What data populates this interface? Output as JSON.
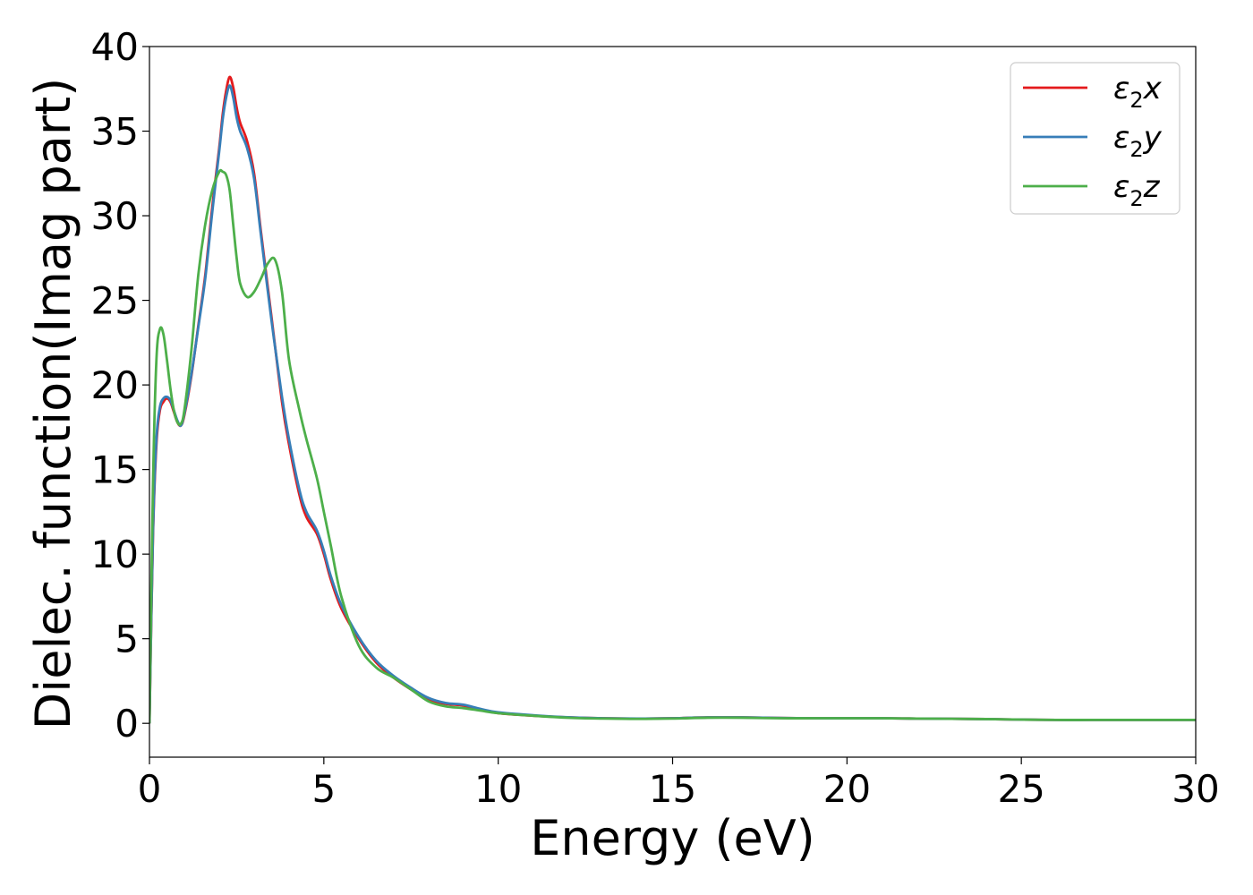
{
  "chart_data": {
    "type": "line",
    "xlabel": "Energy (eV)",
    "ylabel": "Dielec. function(Imag part)",
    "xlim": [
      0,
      30
    ],
    "ylim": [
      -2,
      40
    ],
    "xticks": [
      0,
      5,
      10,
      15,
      20,
      25,
      30
    ],
    "yticks": [
      0,
      5,
      10,
      15,
      20,
      25,
      30,
      35,
      40
    ],
    "grid": false,
    "legend_position": "top-right",
    "series": [
      {
        "name": "ε₂x",
        "legend": {
          "base": "ε",
          "sub": "2",
          "tail": "x"
        },
        "color": "#e41a1c",
        "x": [
          0,
          0.1,
          0.2,
          0.3,
          0.4,
          0.5,
          0.6,
          0.7,
          0.8,
          0.9,
          1.0,
          1.2,
          1.4,
          1.6,
          1.8,
          2.0,
          2.1,
          2.2,
          2.3,
          2.4,
          2.5,
          2.6,
          2.8,
          3.0,
          3.2,
          3.5,
          3.8,
          4.0,
          4.3,
          4.5,
          4.8,
          5.0,
          5.2,
          5.5,
          6.0,
          6.5,
          7.0,
          7.5,
          8.0,
          8.5,
          9.0,
          9.5,
          10,
          11,
          12,
          13,
          14,
          15,
          16,
          17,
          18,
          19,
          20,
          21,
          22,
          23,
          24,
          25,
          26,
          27,
          28,
          29,
          30
        ],
        "values": [
          0,
          11,
          16.5,
          18.5,
          19.0,
          19.2,
          19.0,
          18.4,
          17.8,
          17.6,
          18.2,
          20.5,
          23.5,
          26.5,
          30.5,
          34.0,
          36.0,
          37.4,
          38.2,
          37.6,
          36.4,
          35.5,
          34.4,
          32.5,
          29.0,
          24.0,
          19.0,
          16.5,
          13.5,
          12.2,
          11.2,
          10.0,
          8.5,
          6.8,
          5.0,
          3.6,
          2.7,
          2.0,
          1.4,
          1.15,
          1.05,
          0.8,
          0.6,
          0.45,
          0.35,
          0.3,
          0.28,
          0.3,
          0.35,
          0.35,
          0.32,
          0.3,
          0.3,
          0.3,
          0.28,
          0.27,
          0.25,
          0.22,
          0.2,
          0.2,
          0.2,
          0.2,
          0.2
        ]
      },
      {
        "name": "ε₂y",
        "legend": {
          "base": "ε",
          "sub": "2",
          "tail": "y"
        },
        "color": "#377eb8",
        "x": [
          0,
          0.1,
          0.2,
          0.3,
          0.4,
          0.5,
          0.6,
          0.7,
          0.8,
          0.9,
          1.0,
          1.2,
          1.4,
          1.6,
          1.8,
          2.0,
          2.1,
          2.2,
          2.3,
          2.4,
          2.5,
          2.6,
          2.8,
          3.0,
          3.2,
          3.5,
          3.8,
          4.0,
          4.3,
          4.5,
          4.8,
          5.0,
          5.2,
          5.5,
          6.0,
          6.5,
          7.0,
          7.5,
          8.0,
          8.5,
          9.0,
          9.5,
          10,
          11,
          12,
          13,
          14,
          15,
          16,
          17,
          18,
          19,
          20,
          21,
          22,
          23,
          24,
          25,
          26,
          27,
          28,
          29,
          30
        ],
        "values": [
          0,
          11.2,
          16.8,
          18.7,
          19.2,
          19.3,
          19.1,
          18.5,
          17.9,
          17.6,
          18.3,
          20.6,
          23.4,
          26.3,
          30.2,
          33.8,
          35.7,
          37.0,
          37.7,
          37.0,
          35.8,
          35.0,
          34.0,
          32.2,
          28.8,
          23.8,
          19.3,
          16.8,
          13.8,
          12.5,
          11.4,
          10.2,
          8.7,
          7.0,
          5.1,
          3.7,
          2.8,
          2.1,
          1.5,
          1.2,
          1.1,
          0.85,
          0.65,
          0.48,
          0.36,
          0.3,
          0.28,
          0.3,
          0.35,
          0.35,
          0.32,
          0.3,
          0.3,
          0.3,
          0.28,
          0.27,
          0.25,
          0.22,
          0.2,
          0.2,
          0.2,
          0.2,
          0.2
        ]
      },
      {
        "name": "ε₂z",
        "legend": {
          "base": "ε",
          "sub": "2",
          "tail": "z"
        },
        "color": "#4daf4a",
        "x": [
          0,
          0.1,
          0.2,
          0.3,
          0.4,
          0.5,
          0.6,
          0.7,
          0.8,
          0.9,
          1.0,
          1.2,
          1.4,
          1.6,
          1.8,
          2.0,
          2.1,
          2.2,
          2.3,
          2.4,
          2.5,
          2.6,
          2.8,
          3.0,
          3.2,
          3.4,
          3.6,
          3.8,
          4.0,
          4.3,
          4.5,
          4.8,
          5.0,
          5.2,
          5.5,
          6.0,
          6.5,
          7.0,
          7.5,
          8.0,
          8.5,
          9.0,
          9.5,
          10,
          11,
          12,
          13,
          14,
          15,
          16,
          17,
          18,
          19,
          20,
          21,
          22,
          23,
          24,
          25,
          26,
          27,
          28,
          29,
          30
        ],
        "values": [
          0,
          14,
          21.5,
          23.3,
          23.0,
          21.5,
          19.8,
          18.5,
          17.8,
          17.7,
          18.5,
          22.0,
          26.5,
          29.5,
          31.5,
          32.6,
          32.6,
          32.4,
          31.5,
          29.5,
          27.5,
          26.0,
          25.2,
          25.5,
          26.3,
          27.2,
          27.4,
          25.5,
          21.5,
          18.5,
          16.8,
          14.5,
          12.5,
          10.5,
          7.5,
          4.6,
          3.3,
          2.7,
          2.0,
          1.3,
          1.0,
          0.9,
          0.75,
          0.6,
          0.45,
          0.33,
          0.28,
          0.26,
          0.28,
          0.33,
          0.33,
          0.3,
          0.3,
          0.3,
          0.3,
          0.28,
          0.27,
          0.25,
          0.22,
          0.2,
          0.2,
          0.2,
          0.2,
          0.2
        ]
      }
    ]
  }
}
